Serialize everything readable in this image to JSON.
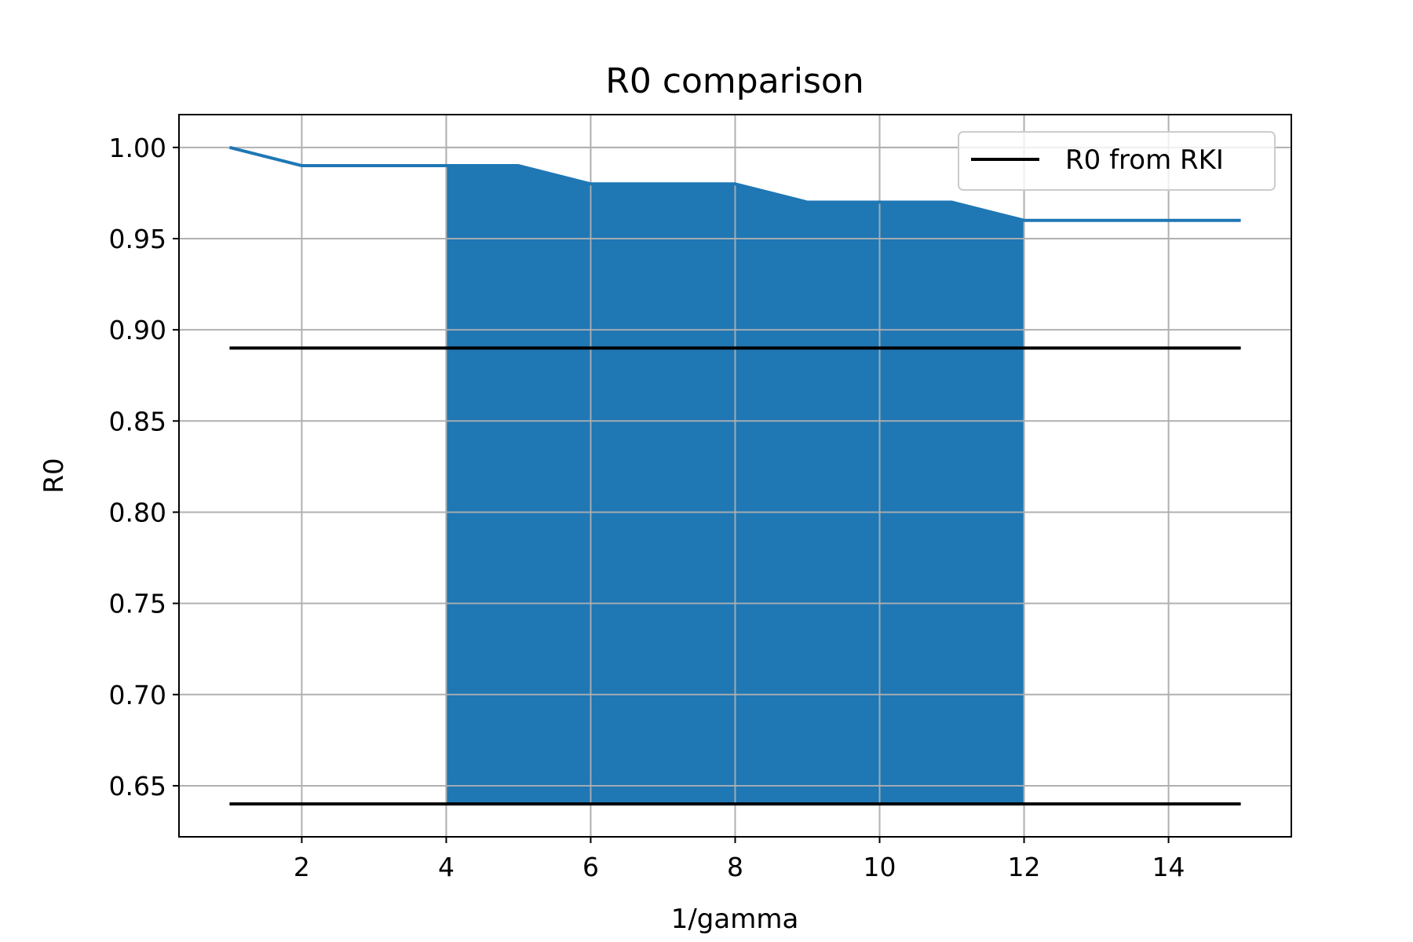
{
  "chart_data": {
    "type": "line",
    "title": "R0 comparison",
    "xlabel": "1/gamma",
    "ylabel": "R0",
    "xlim": [
      0.3,
      15.7
    ],
    "ylim": [
      0.622,
      1.018
    ],
    "grid": true,
    "legend_position": "top-right",
    "xticks": [
      {
        "value": 2,
        "label": "2"
      },
      {
        "value": 4,
        "label": "4"
      },
      {
        "value": 6,
        "label": "6"
      },
      {
        "value": 8,
        "label": "8"
      },
      {
        "value": 10,
        "label": "10"
      },
      {
        "value": 12,
        "label": "12"
      },
      {
        "value": 14,
        "label": "14"
      }
    ],
    "yticks": [
      {
        "value": 0.65,
        "label": "0.65"
      },
      {
        "value": 0.7,
        "label": "0.70"
      },
      {
        "value": 0.75,
        "label": "0.75"
      },
      {
        "value": 0.8,
        "label": "0.80"
      },
      {
        "value": 0.85,
        "label": "0.85"
      },
      {
        "value": 0.9,
        "label": "0.90"
      },
      {
        "value": 0.95,
        "label": "0.95"
      },
      {
        "value": 1.0,
        "label": "1.00"
      }
    ],
    "series": [
      {
        "color": "#1f77b4",
        "x": [
          1,
          2,
          3,
          4,
          5,
          6,
          7,
          8,
          9,
          10,
          11,
          12,
          13,
          14,
          15
        ],
        "values": [
          1.0,
          0.99,
          0.99,
          0.99,
          0.99,
          0.98,
          0.98,
          0.98,
          0.97,
          0.97,
          0.97,
          0.96,
          0.96,
          0.96,
          0.96
        ]
      }
    ],
    "reference_lines": [
      {
        "name": "R0 from RKI",
        "color": "#000000",
        "y": 0.89,
        "x_range": [
          1,
          15
        ]
      },
      {
        "color": "#000000",
        "y": 0.64,
        "x_range": [
          1,
          15
        ]
      }
    ],
    "shaded_region": {
      "color": "#1f77b4",
      "x": [
        4,
        5,
        6,
        7,
        8,
        9,
        10,
        11,
        12
      ],
      "lower": 0.64,
      "upper": [
        0.99,
        0.99,
        0.98,
        0.98,
        0.98,
        0.97,
        0.97,
        0.97,
        0.96
      ]
    },
    "legend": [
      {
        "label": "R0 from RKI",
        "color": "#000000"
      }
    ]
  }
}
